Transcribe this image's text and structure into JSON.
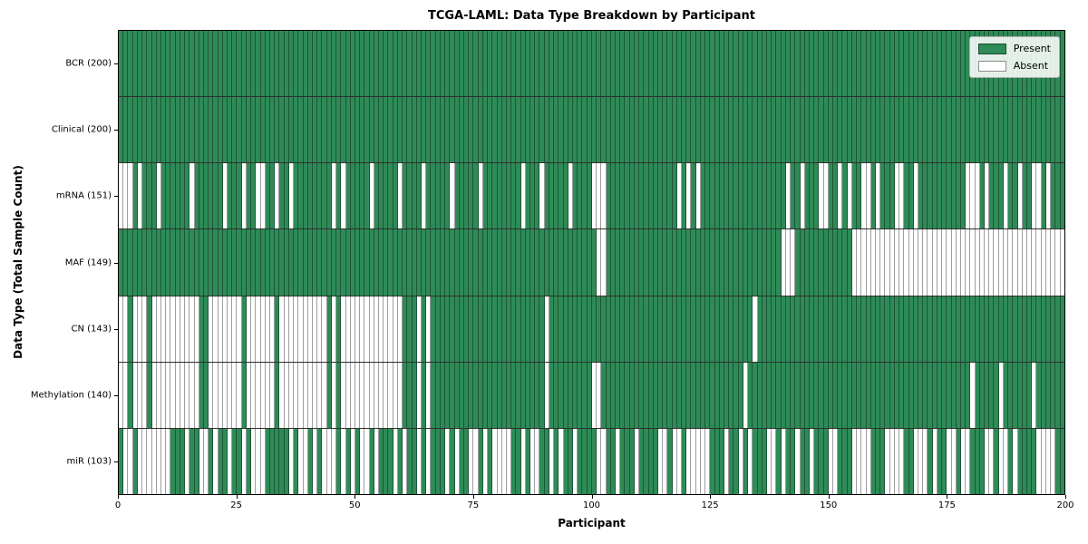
{
  "title": "TCGA-LAML: Data Type Breakdown by Participant",
  "xlabel": "Participant",
  "ylabel": "Data Type (Total Sample Count)",
  "legend": {
    "present_label": "Present",
    "absent_label": "Absent",
    "position": "upper right"
  },
  "colors": {
    "present": "#2e8b57",
    "absent": "#ffffff",
    "cell_edge": "rgba(0,0,0,0.38)",
    "row_separator": "#2f2f2f",
    "frame": "#000000"
  },
  "x_ticks": [
    0,
    25,
    50,
    75,
    100,
    125,
    150,
    175,
    200
  ],
  "chart_data": {
    "type": "heatmap",
    "x_axis": "Participant",
    "xlim": [
      0,
      200
    ],
    "n_participants": 200,
    "states": {
      "1": "Present",
      "0": "Absent"
    },
    "legend_position": "upper right",
    "rows": [
      {
        "name": "BCR",
        "label": "BCR (200)",
        "count": 200,
        "pattern": "11111111111111111111111111111111111111111111111111111111111111111111111111111111111111111111111111111111111111111111111111111111111111111111111111111111111111111111111111111111111111111111111111111111"
      },
      {
        "name": "Clinical",
        "label": "Clinical (200)",
        "count": 200,
        "pattern": "11111111111111111111111111111111111111111111111111111111111111111111111111111111111111111111111111111111111111111111111111111111111111111111111111111111111111111111111111111111111111111111111111111111"
      },
      {
        "name": "mRNA",
        "label": "mRNA (151)",
        "count": 151,
        "pattern": "00010111011111101111110111011001101101111111101011111011111011110111110111110111111110111011111011110001111111111111110101011111111111111111101101110011010110010111001101111111111000101110110110010111"
      },
      {
        "name": "MAF",
        "label": "MAF (149)",
        "count": 149,
        "pattern": "11111111111111111111111111111111111111111111111111111111111111111111111111111111111111111111111111111001111111111111111111111111111111111111000111111111111000000000000000000000000000000000000000000000"
      },
      {
        "name": "CN",
        "label": "CN (143)",
        "count": 143,
        "pattern": "00100010000000000110000000100000010000000000101000000000000011101011111111111111111111111101111111111111111111111111111111111111111111011111111111111111111111111111111111111111111111111111111111111111"
      },
      {
        "name": "Methylation",
        "label": "Methylation (140)",
        "count": 140,
        "pattern": "00100010000000000110000000100000010000000000101000000000000011101011111111111111111111111101111111110011111111111111111111111111111101111111111111111111111111111111111111111111111101111101111110111111"
      },
      {
        "name": "miR",
        "label": "miR (103)",
        "count": 103,
        "pattern": "10010000000111011001011011010001111101001010001010100101110101101011101011001010000110100110101101111001101110111100100100000111011010111001011011011100111000011100001100010110010011100100101111000011"
      }
    ]
  }
}
